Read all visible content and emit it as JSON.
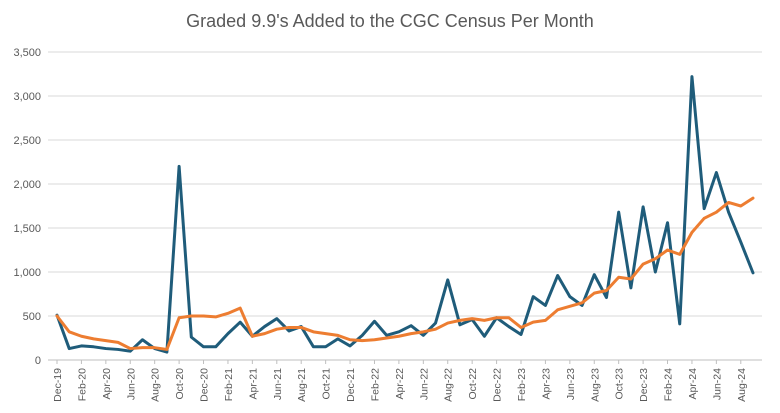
{
  "chart_data": {
    "type": "line",
    "title": "Graded 9.9's Added to the CGC Census Per Month",
    "xlabel": "",
    "ylabel": "",
    "ylim": [
      0,
      3500
    ],
    "yticks": [
      "0",
      "500",
      "1,000",
      "1,500",
      "2,000",
      "2,500",
      "3,000",
      "3,500"
    ],
    "ytick_values": [
      0,
      500,
      1000,
      1500,
      2000,
      2500,
      3000,
      3500
    ],
    "grid": true,
    "legend": "none",
    "x": [
      "Dec-19",
      "Jan-20",
      "Feb-20",
      "Mar-20",
      "Apr-20",
      "May-20",
      "Jun-20",
      "Jul-20",
      "Aug-20",
      "Sep-20",
      "Oct-20",
      "Nov-20",
      "Dec-20",
      "Jan-21",
      "Feb-21",
      "Mar-21",
      "Apr-21",
      "May-21",
      "Jun-21",
      "Jul-21",
      "Aug-21",
      "Sep-21",
      "Oct-21",
      "Nov-21",
      "Dec-21",
      "Jan-22",
      "Feb-22",
      "Mar-22",
      "Apr-22",
      "May-22",
      "Jun-22",
      "Jul-22",
      "Aug-22",
      "Sep-22",
      "Oct-22",
      "Nov-22",
      "Dec-22",
      "Jan-23",
      "Feb-23",
      "Mar-23",
      "Apr-23",
      "May-23",
      "Jun-23",
      "Jul-23",
      "Aug-23",
      "Sep-23",
      "Oct-23",
      "Nov-23",
      "Dec-23",
      "Jan-24",
      "Feb-24",
      "Mar-24",
      "Apr-24",
      "May-24",
      "Jun-24",
      "Jul-24",
      "Aug-24",
      "Sep-24"
    ],
    "x_tick_labels": [
      "Dec-19",
      "Feb-20",
      "Apr-20",
      "Jun-20",
      "Aug-20",
      "Oct-20",
      "Dec-20",
      "Feb-21",
      "Apr-21",
      "Jun-21",
      "Aug-21",
      "Oct-21",
      "Dec-21",
      "Feb-22",
      "Apr-22",
      "Jun-22",
      "Aug-22",
      "Oct-22",
      "Dec-22",
      "Feb-23",
      "Apr-23",
      "Jun-23",
      "Aug-23",
      "Oct-23",
      "Dec-23",
      "Feb-24",
      "Apr-24",
      "Jun-24",
      "Aug-24"
    ],
    "series": [
      {
        "color": "#1f5c7a",
        "values": [
          510,
          130,
          160,
          150,
          130,
          120,
          100,
          230,
          130,
          90,
          2200,
          260,
          150,
          150,
          300,
          430,
          270,
          380,
          470,
          330,
          380,
          150,
          150,
          240,
          160,
          280,
          440,
          280,
          320,
          390,
          280,
          420,
          910,
          400,
          460,
          270,
          480,
          380,
          290,
          720,
          620,
          960,
          720,
          620,
          970,
          710,
          1680,
          820,
          1740,
          1000,
          1560,
          410,
          3220,
          1720,
          2130,
          1680,
          1340,
          990
        ]
      },
      {
        "color": "#ed7d31",
        "values": [
          500,
          320,
          270,
          240,
          220,
          200,
          130,
          140,
          140,
          120,
          480,
          500,
          500,
          490,
          530,
          590,
          270,
          300,
          350,
          370,
          370,
          320,
          300,
          280,
          230,
          220,
          230,
          250,
          270,
          300,
          320,
          350,
          420,
          450,
          470,
          450,
          480,
          480,
          370,
          430,
          450,
          570,
          610,
          650,
          760,
          790,
          940,
          920,
          1090,
          1150,
          1250,
          1200,
          1450,
          1610,
          1680,
          1790,
          1750,
          1840
        ]
      }
    ]
  }
}
